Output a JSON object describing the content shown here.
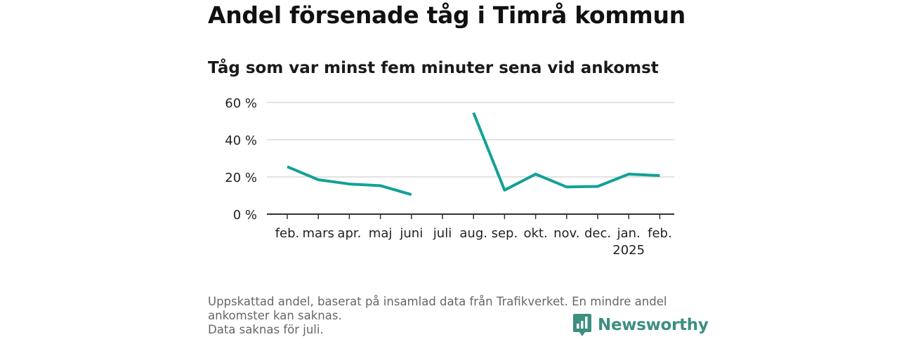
{
  "chart_data": {
    "type": "line",
    "title": "Andel försenade tåg i Timrå kommun",
    "subtitle": "Tåg som var minst fem minuter sena vid ankomst",
    "xlabel": "",
    "ylabel": "",
    "x": [
      "feb.",
      "mars",
      "apr.",
      "maj",
      "juni",
      "juli",
      "aug.",
      "sep.",
      "okt.",
      "nov.",
      "dec.",
      "jan.",
      "feb."
    ],
    "x_sublabels": [
      "",
      "",
      "",
      "",
      "",
      "",
      "",
      "",
      "",
      "",
      "",
      "2025",
      ""
    ],
    "values": [
      25.5,
      18.5,
      16.2,
      15.3,
      10.5,
      null,
      54.5,
      12.9,
      21.5,
      14.6,
      14.9,
      21.5,
      20.7
    ],
    "ylim": [
      0,
      60
    ],
    "yticks": [
      0,
      20,
      40,
      60
    ],
    "ytick_labels": [
      "0 %",
      "20 %",
      "40 %",
      "60 %"
    ],
    "grid": true,
    "line_color": "#13a197"
  },
  "footer": {
    "note_1": "Uppskattad andel, baserat på insamlad data från Trafikverket. En mindre andel ankomster kan saknas.",
    "note_2": "Data saknas för juli."
  },
  "brand": {
    "name": "Newsworthy",
    "color": "#3d8f80",
    "icon": "bar-chart-badge-icon"
  }
}
